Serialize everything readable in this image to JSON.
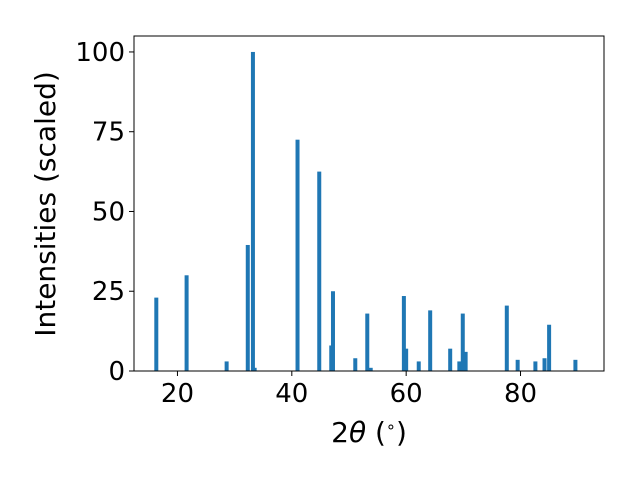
{
  "chart_data": {
    "type": "bar",
    "title": "",
    "xlabel_parts": {
      "prefix": "2",
      "symbol": "θ",
      "suffix": " (",
      "unit": "∘",
      "close": ")"
    },
    "ylabel": "Intensities (scaled)",
    "xlim": [
      12.4,
      94.6
    ],
    "ylim": [
      0,
      105
    ],
    "xticks": [
      20,
      40,
      60,
      80
    ],
    "yticks": [
      0,
      25,
      50,
      75,
      100
    ],
    "bar_color": "#1f77b4",
    "bar_width_deg": 0.7,
    "grid": false,
    "legend": "none",
    "peaks": [
      {
        "x": 16.3,
        "y": 23.0
      },
      {
        "x": 21.6,
        "y": 30.0
      },
      {
        "x": 28.6,
        "y": 3.0
      },
      {
        "x": 32.3,
        "y": 39.5
      },
      {
        "x": 33.2,
        "y": 100.0
      },
      {
        "x": 33.5,
        "y": 1.0
      },
      {
        "x": 41.0,
        "y": 72.5
      },
      {
        "x": 44.8,
        "y": 62.5
      },
      {
        "x": 46.9,
        "y": 8.0
      },
      {
        "x": 47.2,
        "y": 25.0
      },
      {
        "x": 51.1,
        "y": 4.0
      },
      {
        "x": 53.2,
        "y": 18.0
      },
      {
        "x": 53.8,
        "y": 1.0
      },
      {
        "x": 59.6,
        "y": 23.5
      },
      {
        "x": 60.0,
        "y": 7.0
      },
      {
        "x": 62.2,
        "y": 3.0
      },
      {
        "x": 64.2,
        "y": 19.0
      },
      {
        "x": 67.7,
        "y": 7.0
      },
      {
        "x": 69.3,
        "y": 3.0
      },
      {
        "x": 69.9,
        "y": 18.0
      },
      {
        "x": 70.4,
        "y": 6.0
      },
      {
        "x": 77.6,
        "y": 20.5
      },
      {
        "x": 79.5,
        "y": 3.5
      },
      {
        "x": 82.6,
        "y": 3.0
      },
      {
        "x": 84.2,
        "y": 4.0
      },
      {
        "x": 85.0,
        "y": 14.5
      },
      {
        "x": 89.6,
        "y": 3.5
      }
    ]
  }
}
